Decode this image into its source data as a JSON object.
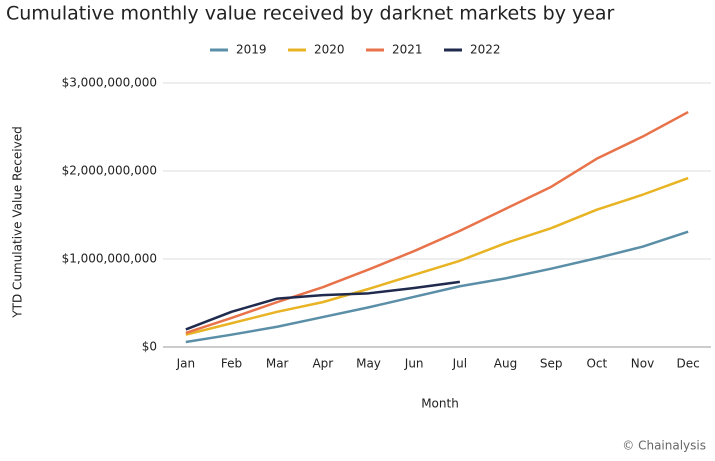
{
  "chart_data": {
    "type": "line",
    "title": "Cumulative monthly value received by darknet markets by year",
    "x_label": "Month",
    "y_label": "YTD Cumulative Value Received",
    "source": "© Chainalysis",
    "categories": [
      "Jan",
      "Feb",
      "Mar",
      "Apr",
      "May",
      "Jun",
      "Jul",
      "Aug",
      "Sep",
      "Oct",
      "Nov",
      "Dec"
    ],
    "series": [
      {
        "name": "2019",
        "color": "#5b8fa8",
        "values": [
          57000000,
          140000000,
          230000000,
          340000000,
          450000000,
          570000000,
          690000000,
          780000000,
          890000000,
          1010000000,
          1140000000,
          1310000000
        ]
      },
      {
        "name": "2020",
        "color": "#e8b424",
        "values": [
          140000000,
          270000000,
          400000000,
          510000000,
          660000000,
          820000000,
          980000000,
          1180000000,
          1350000000,
          1560000000,
          1730000000,
          1920000000
        ]
      },
      {
        "name": "2021",
        "color": "#e8734a",
        "values": [
          160000000,
          330000000,
          510000000,
          680000000,
          880000000,
          1090000000,
          1320000000,
          1570000000,
          1820000000,
          2140000000,
          2390000000,
          2670000000
        ]
      },
      {
        "name": "2022",
        "color": "#1f2a4d",
        "values": [
          200000000,
          400000000,
          550000000,
          590000000,
          610000000,
          670000000,
          740000000,
          null,
          null,
          null,
          null,
          null
        ]
      }
    ],
    "ylim": [
      0,
      3000000000
    ],
    "yticks": [
      {
        "value": 0,
        "label": "$0"
      },
      {
        "value": 1000000000,
        "label": "$1,000,000,000"
      },
      {
        "value": 2000000000,
        "label": "$2,000,000,000"
      },
      {
        "value": 3000000000,
        "label": "$3,000,000,000"
      }
    ],
    "grid": true,
    "legend": "top"
  }
}
